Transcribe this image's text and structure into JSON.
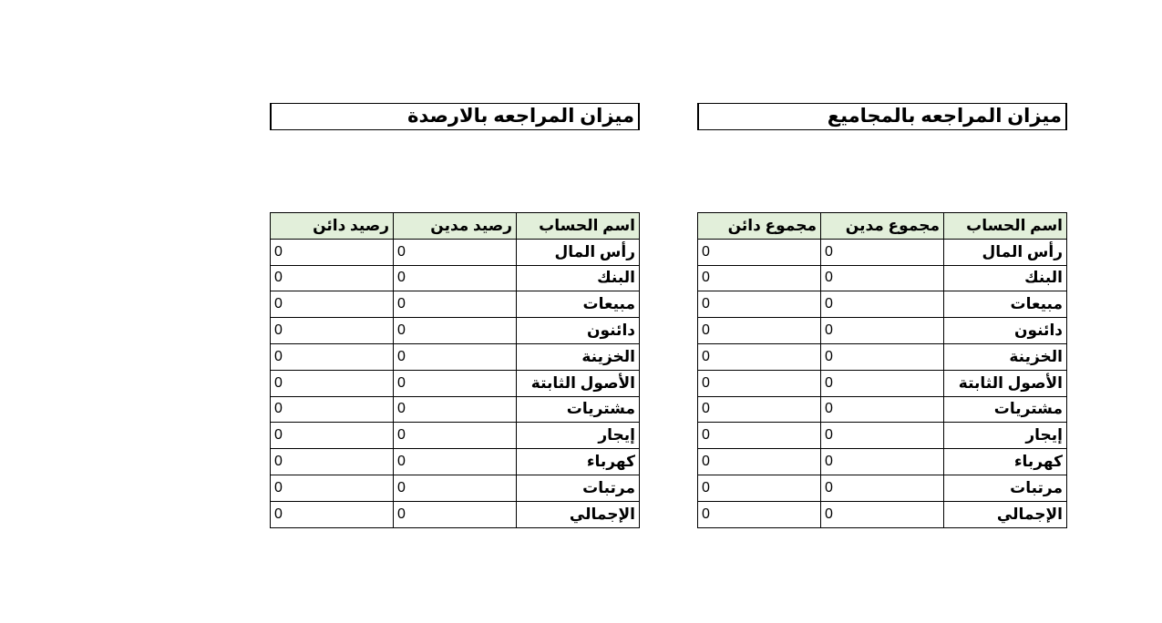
{
  "colors": {
    "header_fill": "#e2efda",
    "border": "#000000"
  },
  "totals_sheet": {
    "title": "ميزان المراجعه بالمجاميع",
    "headers": [
      "اسم الحساب",
      "مجموع مدين",
      "مجموع دائن"
    ],
    "rows": [
      {
        "name": "رأس المال",
        "debit": "0",
        "credit": "0"
      },
      {
        "name": "البنك",
        "debit": "0",
        "credit": "0"
      },
      {
        "name": "مبيعات",
        "debit": "0",
        "credit": "0"
      },
      {
        "name": "دائنون",
        "debit": "0",
        "credit": "0"
      },
      {
        "name": "الخزينة",
        "debit": "0",
        "credit": "0"
      },
      {
        "name": "الأصول الثابتة",
        "debit": "0",
        "credit": "0"
      },
      {
        "name": "مشتريات",
        "debit": "0",
        "credit": "0"
      },
      {
        "name": "إيجار",
        "debit": "0",
        "credit": "0"
      },
      {
        "name": "كهرباء",
        "debit": "0",
        "credit": "0"
      },
      {
        "name": "مرتبات",
        "debit": "0",
        "credit": "0"
      },
      {
        "name": "الإجمالي",
        "debit": "0",
        "credit": "0"
      }
    ]
  },
  "balances_sheet": {
    "title": "ميزان المراجعه بالارصدة",
    "headers": [
      "اسم الحساب",
      "رصيد مدين",
      "رصيد دائن"
    ],
    "rows": [
      {
        "name": "رأس المال",
        "debit": "0",
        "credit": "0"
      },
      {
        "name": "البنك",
        "debit": "0",
        "credit": "0"
      },
      {
        "name": "مبيعات",
        "debit": "0",
        "credit": "0"
      },
      {
        "name": "دائنون",
        "debit": "0",
        "credit": "0"
      },
      {
        "name": "الخزينة",
        "debit": "0",
        "credit": "0"
      },
      {
        "name": "الأصول الثابتة",
        "debit": "0",
        "credit": "0"
      },
      {
        "name": "مشتريات",
        "debit": "0",
        "credit": "0"
      },
      {
        "name": "إيجار",
        "debit": "0",
        "credit": "0"
      },
      {
        "name": "كهرباء",
        "debit": "0",
        "credit": "0"
      },
      {
        "name": "مرتبات",
        "debit": "0",
        "credit": "0"
      },
      {
        "name": "الإجمالي",
        "debit": "0",
        "credit": "0"
      }
    ]
  }
}
